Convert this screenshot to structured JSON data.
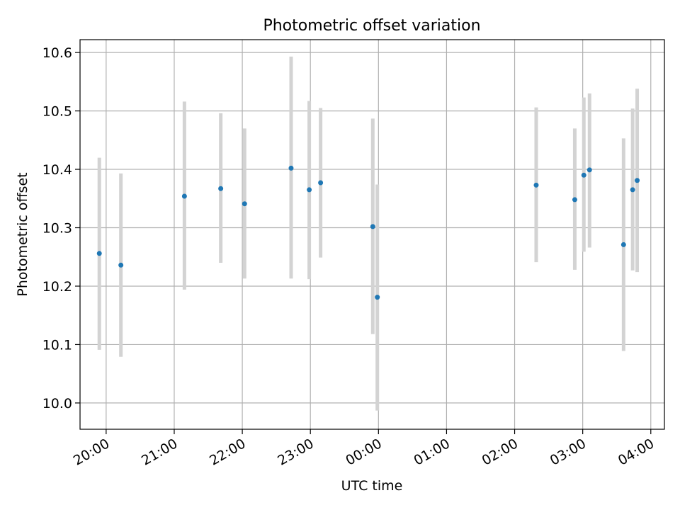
{
  "chart_data": {
    "type": "scatter",
    "title": "Photometric offset variation",
    "xlabel": "UTC time",
    "ylabel": "Photometric offset",
    "x_axis_type": "datetime",
    "xlim": [
      "19:37",
      "04:12"
    ],
    "ylim": [
      9.955,
      10.622
    ],
    "grid": true,
    "x_ticks": [
      "20:00",
      "21:00",
      "22:00",
      "23:00",
      "00:00",
      "01:00",
      "02:00",
      "03:00",
      "04:00"
    ],
    "y_ticks": [
      "10.0",
      "10.1",
      "10.2",
      "10.3",
      "10.4",
      "10.5",
      "10.6"
    ],
    "colors": {
      "points": "#1f77b4",
      "error_bars": "#d3d3d3",
      "grid": "#b0b0b0"
    },
    "series": [
      {
        "points": [
          {
            "x": "19:54",
            "y": 10.256,
            "ylow": 10.091,
            "yhigh": 10.42
          },
          {
            "x": "20:13",
            "y": 10.236,
            "ylow": 10.079,
            "yhigh": 10.393
          },
          {
            "x": "21:09",
            "y": 10.354,
            "ylow": 10.194,
            "yhigh": 10.516
          },
          {
            "x": "21:41",
            "y": 10.367,
            "ylow": 10.24,
            "yhigh": 10.496
          },
          {
            "x": "22:02",
            "y": 10.341,
            "ylow": 10.213,
            "yhigh": 10.47
          },
          {
            "x": "22:43",
            "y": 10.402,
            "ylow": 10.213,
            "yhigh": 10.593
          },
          {
            "x": "22:59",
            "y": 10.365,
            "ylow": 10.212,
            "yhigh": 10.517
          },
          {
            "x": "23:09",
            "y": 10.377,
            "ylow": 10.249,
            "yhigh": 10.505
          },
          {
            "x": "23:55",
            "y": 10.302,
            "ylow": 10.118,
            "yhigh": 10.487
          },
          {
            "x": "23:59",
            "y": 10.181,
            "ylow": 9.987,
            "yhigh": 10.374
          },
          {
            "x": "02:19",
            "y": 10.373,
            "ylow": 10.241,
            "yhigh": 10.506
          },
          {
            "x": "02:53",
            "y": 10.348,
            "ylow": 10.228,
            "yhigh": 10.47
          },
          {
            "x": "03:01",
            "y": 10.39,
            "ylow": 10.259,
            "yhigh": 10.523
          },
          {
            "x": "03:06",
            "y": 10.399,
            "ylow": 10.266,
            "yhigh": 10.53
          },
          {
            "x": "03:36",
            "y": 10.271,
            "ylow": 10.089,
            "yhigh": 10.453
          },
          {
            "x": "03:44",
            "y": 10.365,
            "ylow": 10.227,
            "yhigh": 10.504
          },
          {
            "x": "03:48",
            "y": 10.381,
            "ylow": 10.224,
            "yhigh": 10.538
          }
        ]
      }
    ]
  }
}
